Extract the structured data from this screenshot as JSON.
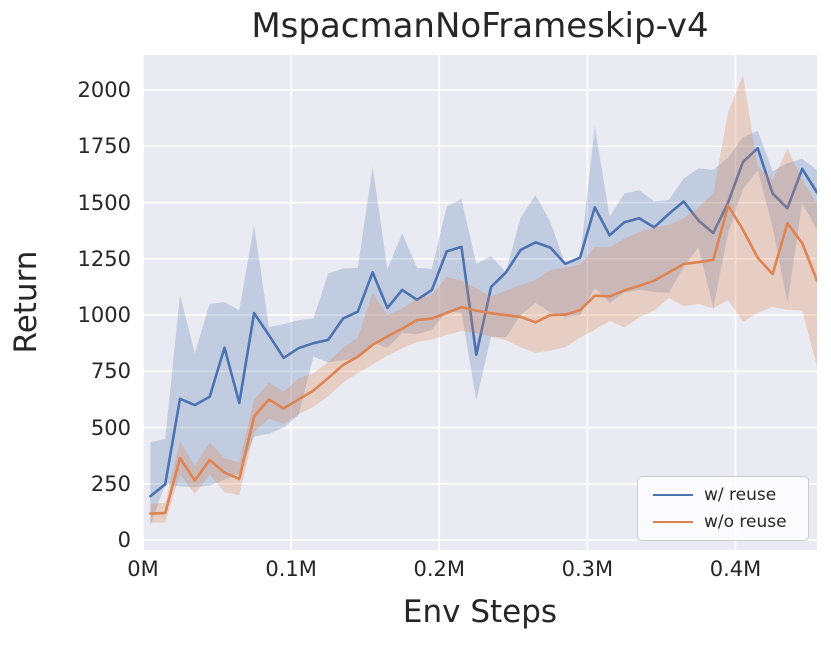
{
  "colors": {
    "figure_background": "#ffffff",
    "plot_background": "#eaeaf2",
    "grid": "#ffffff",
    "text": "#262626",
    "legend_border": "#cccccc",
    "legend_background": "rgba(255,255,255,0.8)",
    "accent_blue": "#4c72b0",
    "accent_orange": "#dd8452"
  },
  "axes": {
    "xlim": [
      0,
      0.455
    ],
    "ylim": [
      -44,
      2156
    ],
    "xticks": [
      {
        "value": 0.0,
        "label": "0M"
      },
      {
        "value": 0.1,
        "label": "0.1M"
      },
      {
        "value": 0.2,
        "label": "0.2M"
      },
      {
        "value": 0.3,
        "label": "0.3M"
      },
      {
        "value": 0.4,
        "label": "0.4M"
      }
    ],
    "yticks": [
      {
        "value": 0,
        "label": "0"
      },
      {
        "value": 250,
        "label": "250"
      },
      {
        "value": 500,
        "label": "500"
      },
      {
        "value": 750,
        "label": "750"
      },
      {
        "value": 1000,
        "label": "1000"
      },
      {
        "value": 1250,
        "label": "1250"
      },
      {
        "value": 1500,
        "label": "1500"
      },
      {
        "value": 1750,
        "label": "1750"
      },
      {
        "value": 2000,
        "label": "2000"
      }
    ]
  },
  "chart_data": {
    "type": "line",
    "title": "MspacmanNoFrameskip-v4",
    "xlabel": "Env Steps",
    "ylabel": "Return",
    "x_unit": "millions of env steps",
    "grid": true,
    "legend_position": "lower right",
    "bands": "shaded min-max/confidence region around each mean line",
    "x": [
      0.005,
      0.015,
      0.025,
      0.035,
      0.045,
      0.055,
      0.065,
      0.075,
      0.085,
      0.095,
      0.105,
      0.115,
      0.125,
      0.135,
      0.145,
      0.155,
      0.165,
      0.175,
      0.185,
      0.195,
      0.205,
      0.215,
      0.225,
      0.235,
      0.245,
      0.255,
      0.265,
      0.275,
      0.285,
      0.295,
      0.305,
      0.315,
      0.325,
      0.335,
      0.345,
      0.355,
      0.365,
      0.375,
      0.385,
      0.395,
      0.405,
      0.415,
      0.425,
      0.435,
      0.445,
      0.455
    ],
    "series": [
      {
        "id": "w-reuse",
        "name": "w/ reuse",
        "color": "#4c72b0",
        "band_fill": "rgba(76,114,176,0.25)",
        "mean": [
          195,
          248,
          628,
          600,
          637,
          855,
          610,
          1009,
          911,
          810,
          853,
          875,
          890,
          985,
          1015,
          1190,
          1032,
          1112,
          1068,
          1112,
          1283,
          1303,
          824,
          1125,
          1190,
          1290,
          1323,
          1300,
          1228,
          1255,
          1479,
          1354,
          1413,
          1430,
          1390,
          1450,
          1505,
          1420,
          1365,
          1500,
          1680,
          1742,
          1541,
          1475,
          1650,
          1545
        ],
        "lo": [
          62,
          250,
          238,
          236,
          242,
          268,
          295,
          460,
          472,
          500,
          555,
          815,
          790,
          800,
          806,
          877,
          855,
          920,
          915,
          935,
          1015,
          1012,
          620,
          905,
          900,
          1001,
          1054,
          1012,
          992,
          1000,
          1121,
          1054,
          1100,
          1112,
          1103,
          1099,
          1214,
          1302,
          1032,
          1364,
          1560,
          1643,
          1391,
          1055,
          1497,
          1377
        ],
        "hi": [
          435,
          450,
          1090,
          830,
          1050,
          1058,
          1022,
          1400,
          947,
          960,
          978,
          985,
          1185,
          1207,
          1210,
          1660,
          1205,
          1363,
          1210,
          1205,
          1483,
          1515,
          1228,
          1262,
          1190,
          1435,
          1533,
          1415,
          1225,
          1248,
          1840,
          1437,
          1541,
          1555,
          1505,
          1512,
          1607,
          1652,
          1645,
          1700,
          1790,
          1820,
          1640,
          1675,
          1695,
          1645
        ]
      },
      {
        "id": "wo-reuse",
        "name": "w/o reuse",
        "color": "#dd8452",
        "band_fill": "rgba(221,132,82,0.28)",
        "mean": [
          118,
          120,
          365,
          265,
          356,
          300,
          272,
          550,
          625,
          585,
          625,
          665,
          720,
          778,
          815,
          868,
          905,
          940,
          978,
          985,
          1010,
          1035,
          1020,
          1008,
          1000,
          992,
          968,
          1000,
          1002,
          1022,
          1086,
          1083,
          1110,
          1130,
          1153,
          1190,
          1227,
          1235,
          1246,
          1487,
          1380,
          1255,
          1182,
          1408,
          1320,
          1153
        ],
        "lo": [
          78,
          78,
          292,
          205,
          290,
          212,
          200,
          480,
          540,
          516,
          560,
          592,
          640,
          700,
          742,
          780,
          820,
          852,
          880,
          892,
          912,
          930,
          920,
          904,
          888,
          858,
          833,
          842,
          858,
          900,
          935,
          974,
          945,
          990,
          1020,
          1076,
          1040,
          1050,
          1030,
          1067,
          970,
          1010,
          1037,
          1023,
          1020,
          771
        ],
        "hi": [
          162,
          165,
          440,
          330,
          434,
          365,
          345,
          625,
          700,
          660,
          718,
          742,
          792,
          855,
          900,
          1099,
          1000,
          1030,
          1070,
          1090,
          1170,
          1152,
          1120,
          1082,
          1110,
          1134,
          1156,
          1200,
          1212,
          1223,
          1302,
          1302,
          1340,
          1369,
          1391,
          1402,
          1430,
          1480,
          1541,
          1900,
          2068,
          1660,
          1600,
          1740,
          1600,
          1497
        ]
      }
    ]
  }
}
